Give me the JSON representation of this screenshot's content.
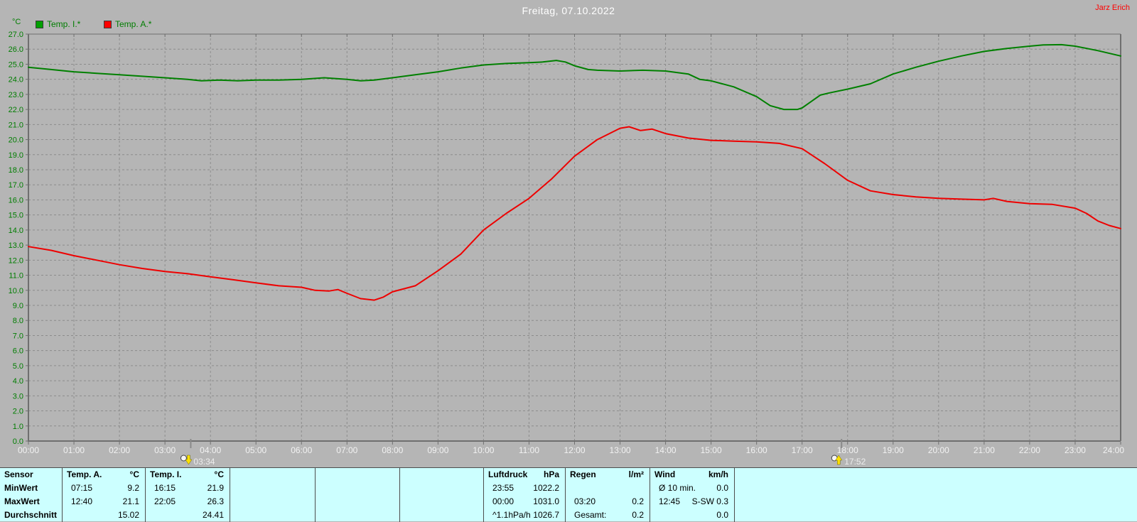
{
  "header": {
    "title": "Freitag, 07.10.2022",
    "author": "Jarz Erich"
  },
  "chart_data": {
    "type": "line",
    "title": "Freitag, 07.10.2022",
    "unit_label": "°C",
    "xlabel": "",
    "ylabel": "°C",
    "xlim": [
      0,
      24
    ],
    "ylim": [
      0,
      27
    ],
    "grid": true,
    "legend_position": "top-left",
    "legend": [
      {
        "label": "Temp. I.*",
        "color": "#008000",
        "swatch": "green-square-icon"
      },
      {
        "label": "Temp. A.*",
        "color": "#ee0000",
        "swatch": "red-square-icon"
      }
    ],
    "x_ticks": [
      "00:00",
      "01:00",
      "02:00",
      "03:00",
      "04:00",
      "05:00",
      "06:00",
      "07:00",
      "08:00",
      "09:00",
      "10:00",
      "11:00",
      "12:00",
      "13:00",
      "14:00",
      "15:00",
      "16:00",
      "17:00",
      "18:00",
      "19:00",
      "20:00",
      "21:00",
      "22:00",
      "23:00",
      "24:00"
    ],
    "y_tick_labels": [
      "27.0",
      "26.0",
      "25.0",
      "24.0",
      "23.0",
      "22.0",
      "21.0",
      "20.0",
      "19.0",
      "18.0",
      "17.0",
      "16.0",
      "15.0",
      "14.0",
      "13.0",
      "12.0",
      "11.0",
      "10.0",
      "9.0",
      "8.0",
      "7.0",
      "6.0",
      "5.0",
      "4.0",
      "3.0",
      "2.0",
      "1.0",
      "0.0"
    ],
    "series": [
      {
        "name": "Temp. I.*",
        "color": "#008000",
        "points": [
          [
            0,
            24.8
          ],
          [
            0.5,
            24.65
          ],
          [
            1,
            24.5
          ],
          [
            1.5,
            24.4
          ],
          [
            2,
            24.3
          ],
          [
            2.5,
            24.2
          ],
          [
            3,
            24.1
          ],
          [
            3.5,
            24.0
          ],
          [
            3.8,
            23.9
          ],
          [
            4.2,
            23.95
          ],
          [
            4.6,
            23.9
          ],
          [
            5,
            23.95
          ],
          [
            5.5,
            23.95
          ],
          [
            6,
            24.0
          ],
          [
            6.5,
            24.1
          ],
          [
            7,
            24.0
          ],
          [
            7.3,
            23.9
          ],
          [
            7.6,
            23.95
          ],
          [
            8,
            24.1
          ],
          [
            8.5,
            24.3
          ],
          [
            9,
            24.5
          ],
          [
            9.5,
            24.75
          ],
          [
            10,
            24.95
          ],
          [
            10.5,
            25.05
          ],
          [
            11,
            25.1
          ],
          [
            11.3,
            25.15
          ],
          [
            11.6,
            25.25
          ],
          [
            11.8,
            25.15
          ],
          [
            12,
            24.9
          ],
          [
            12.3,
            24.65
          ],
          [
            12.5,
            24.6
          ],
          [
            13,
            24.55
          ],
          [
            13.5,
            24.6
          ],
          [
            14,
            24.55
          ],
          [
            14.5,
            24.35
          ],
          [
            14.75,
            24.0
          ],
          [
            15,
            23.9
          ],
          [
            15.5,
            23.5
          ],
          [
            16,
            22.85
          ],
          [
            16.3,
            22.25
          ],
          [
            16.6,
            22.0
          ],
          [
            16.9,
            22.0
          ],
          [
            17,
            22.1
          ],
          [
            17.4,
            22.95
          ],
          [
            17.6,
            23.1
          ],
          [
            18,
            23.35
          ],
          [
            18.5,
            23.7
          ],
          [
            19,
            24.35
          ],
          [
            19.5,
            24.8
          ],
          [
            20,
            25.2
          ],
          [
            20.5,
            25.55
          ],
          [
            21,
            25.85
          ],
          [
            21.5,
            26.05
          ],
          [
            22,
            26.2
          ],
          [
            22.3,
            26.28
          ],
          [
            22.7,
            26.3
          ],
          [
            23,
            26.2
          ],
          [
            23.5,
            25.9
          ],
          [
            24,
            25.55
          ]
        ]
      },
      {
        "name": "Temp. A.*",
        "color": "#ee0000",
        "points": [
          [
            0,
            12.9
          ],
          [
            0.5,
            12.65
          ],
          [
            1,
            12.3
          ],
          [
            1.5,
            12.0
          ],
          [
            2,
            11.7
          ],
          [
            2.5,
            11.45
          ],
          [
            3,
            11.25
          ],
          [
            3.5,
            11.1
          ],
          [
            4,
            10.9
          ],
          [
            4.5,
            10.7
          ],
          [
            5,
            10.5
          ],
          [
            5.5,
            10.3
          ],
          [
            6,
            10.2
          ],
          [
            6.3,
            10.0
          ],
          [
            6.6,
            9.95
          ],
          [
            6.8,
            10.05
          ],
          [
            7,
            9.8
          ],
          [
            7.3,
            9.45
          ],
          [
            7.6,
            9.35
          ],
          [
            7.8,
            9.55
          ],
          [
            8,
            9.9
          ],
          [
            8.5,
            10.3
          ],
          [
            9,
            11.3
          ],
          [
            9.5,
            12.4
          ],
          [
            10,
            14.0
          ],
          [
            10.5,
            15.1
          ],
          [
            11,
            16.1
          ],
          [
            11.5,
            17.4
          ],
          [
            12,
            18.9
          ],
          [
            12.5,
            20.0
          ],
          [
            13,
            20.75
          ],
          [
            13.2,
            20.85
          ],
          [
            13.45,
            20.6
          ],
          [
            13.7,
            20.7
          ],
          [
            14,
            20.4
          ],
          [
            14.5,
            20.1
          ],
          [
            15,
            19.95
          ],
          [
            15.5,
            19.9
          ],
          [
            16,
            19.85
          ],
          [
            16.5,
            19.75
          ],
          [
            17,
            19.4
          ],
          [
            17.5,
            18.4
          ],
          [
            18,
            17.3
          ],
          [
            18.5,
            16.6
          ],
          [
            19,
            16.35
          ],
          [
            19.5,
            16.2
          ],
          [
            20,
            16.1
          ],
          [
            20.5,
            16.05
          ],
          [
            21,
            16.0
          ],
          [
            21.2,
            16.1
          ],
          [
            21.5,
            15.9
          ],
          [
            22,
            15.75
          ],
          [
            22.5,
            15.7
          ],
          [
            23,
            15.45
          ],
          [
            23.25,
            15.1
          ],
          [
            23.5,
            14.6
          ],
          [
            23.75,
            14.3
          ],
          [
            24,
            14.1
          ]
        ]
      }
    ],
    "event_markers": [
      {
        "time": "03:34",
        "hours": 3.567,
        "icon": "moonset-icon"
      },
      {
        "time": "17:52",
        "hours": 17.867,
        "icon": "moonrise-icon"
      }
    ]
  },
  "stats_table": {
    "row_labels": [
      "Sensor",
      "MinWert",
      "MaxWert",
      "Durchschnitt"
    ],
    "columns": [
      {
        "name": "Temp. A.",
        "unit": "°C",
        "rows": [
          [
            "07:15",
            "9.2"
          ],
          [
            "12:40",
            "21.1"
          ],
          [
            "",
            "15.02"
          ]
        ]
      },
      {
        "name": "Temp. I.",
        "unit": "°C",
        "rows": [
          [
            "16:15",
            "21.9"
          ],
          [
            "22:05",
            "26.3"
          ],
          [
            "",
            "24.41"
          ]
        ]
      },
      {
        "name": "",
        "unit": "",
        "rows": [
          [
            "",
            ""
          ],
          [
            "",
            ""
          ],
          [
            "",
            ""
          ]
        ]
      },
      {
        "name": "",
        "unit": "",
        "rows": [
          [
            "",
            ""
          ],
          [
            "",
            ""
          ],
          [
            "",
            ""
          ]
        ]
      },
      {
        "name": "",
        "unit": "",
        "rows": [
          [
            "",
            ""
          ],
          [
            "",
            ""
          ],
          [
            "",
            ""
          ]
        ]
      },
      {
        "name": "Luftdruck",
        "unit": "hPa",
        "rows": [
          [
            "23:55",
            "1022.2"
          ],
          [
            "00:00",
            "1031.0"
          ],
          [
            "^1.1hPa/h",
            "1026.7"
          ]
        ]
      },
      {
        "name": "Regen",
        "unit": "l/m²",
        "rows": [
          [
            "",
            ""
          ],
          [
            "03:20",
            "0.2"
          ],
          [
            "Gesamt:",
            "0.2"
          ]
        ]
      },
      {
        "name": "Wind",
        "unit": "km/h",
        "rows": [
          [
            "Ø 10 min.",
            "0.0"
          ],
          [
            "12:45",
            "S-SW 0.3"
          ],
          [
            "",
            "0.0"
          ]
        ]
      }
    ]
  },
  "colors": {
    "background": "#b5b5b5",
    "table_background": "#ccffff",
    "grid": "#8c8c8c",
    "axis": "#6f6f6f",
    "y_tick_label": "#007d00",
    "x_tick_label": "#f2f2f2",
    "title": "#ffffff",
    "author": "#ff0000",
    "marker_text": "#ececec",
    "marker_arrow": "#ffe000"
  }
}
